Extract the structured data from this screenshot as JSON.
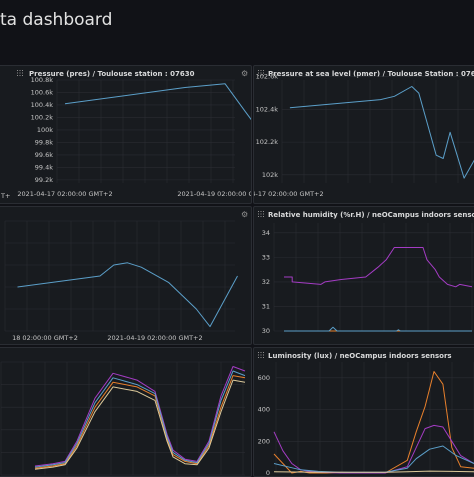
{
  "page": {
    "title": "ta dashboard"
  },
  "icons": {
    "panel_menu": "gear-icon",
    "panel_drag": "grip-icon"
  },
  "colors": {
    "background": "#111217",
    "panel": "#181b1f",
    "grid": "#2a2d33",
    "blue": "#5b9fc9",
    "purple": "#a43cc4",
    "orange": "#e8802c",
    "beige": "#dcc99a"
  },
  "panels": {
    "pres": {
      "title": "Pressure (pres) / Toulouse station : 07630",
      "partial_left_tick": "T+"
    },
    "pmer": {
      "title": "Pressure at sea level (pmer) / Toulouse Station : 07630"
    },
    "temp": {
      "title": ""
    },
    "hum": {
      "title": "Relative humidity (%r.H) / neOCampus indoors sensors"
    },
    "env": {
      "title": ""
    },
    "lum": {
      "title": "Luminosity (lux) / neOCampus indoors sensors"
    }
  },
  "chart_data": [
    {
      "panel": "pres",
      "type": "line",
      "title": "Pressure (pres) / Toulouse station : 07630",
      "yticks": [
        "100.8k",
        "100.6k",
        "100.4k",
        "100.2k",
        "100k",
        "99.8k",
        "99.6k",
        "99.4k",
        "99.2k"
      ],
      "ylim": [
        99150,
        100800
      ],
      "xticks": [
        "2021-04-17 02:00:00 GMT+2",
        "2021-04-19 02:00:00 GMT+2"
      ],
      "x_hours": [
        0,
        48
      ],
      "series": [
        {
          "color": "#5b9fc9",
          "x": [
            0,
            36,
            48,
            54,
            60,
            64,
            66,
            72,
            80
          ],
          "y": [
            100420,
            100680,
            100740,
            100300,
            99870,
            99850,
            99600,
            99550,
            99200
          ]
        }
      ]
    },
    {
      "panel": "pmer",
      "type": "line",
      "title": "Pressure at sea level (pmer) / Toulouse Station : 07630",
      "yticks": [
        "102.6k",
        "102.4k",
        "102.2k",
        "102k"
      ],
      "ylim": [
        101950,
        102580
      ],
      "xticks": [
        "2021-04-17 02:00:00 GMT+2"
      ],
      "x_hours": [
        0
      ],
      "series": [
        {
          "color": "#5b9fc9",
          "x": [
            4,
            30,
            34,
            39,
            41,
            46,
            48,
            50,
            52,
            54,
            58
          ],
          "y": [
            102410,
            102460,
            102480,
            102540,
            102500,
            102120,
            102100,
            102260,
            102120,
            101980,
            102130
          ]
        }
      ]
    },
    {
      "panel": "temp",
      "type": "line",
      "xticks": [
        "18 02:00:00 GMT+2",
        "2021-04-19 02:00:00 GMT+2"
      ],
      "x_hours": [
        0,
        24
      ],
      "ylim": [
        0,
        100
      ],
      "series": [
        {
          "color": "#5b9fc9",
          "x": [
            -6,
            12,
            15,
            18,
            21,
            27,
            33,
            36,
            42
          ],
          "y": [
            40,
            50,
            60,
            62,
            58,
            44,
            20,
            4,
            50
          ]
        }
      ]
    },
    {
      "panel": "hum",
      "type": "line",
      "title": "Relative humidity (%r.H) / neOCampus indoors sensors",
      "yticks": [
        "34",
        "33",
        "32",
        "31",
        "30"
      ],
      "ylim": [
        30,
        34.4
      ],
      "series": [
        {
          "color": "#a43cc4",
          "x": [
            0,
            4,
            4,
            18,
            20,
            28,
            40,
            46,
            50,
            54,
            68,
            70,
            74,
            76,
            80,
            84,
            86,
            92
          ],
          "y": [
            32.2,
            32.2,
            32.0,
            31.9,
            32.0,
            32.1,
            32.2,
            32.6,
            32.9,
            33.4,
            33.4,
            32.9,
            32.5,
            32.2,
            31.9,
            31.8,
            31.9,
            31.8
          ]
        },
        {
          "color": "#e8802c",
          "x": [
            0,
            92
          ],
          "y": [
            30.0,
            30.0
          ]
        },
        {
          "color": "#5b9fc9",
          "x": [
            0,
            22,
            24,
            26,
            55,
            56,
            57,
            58,
            92
          ],
          "y": [
            30.0,
            30.0,
            30.15,
            30.0,
            30.0,
            30.05,
            30.0,
            30.0,
            30.0
          ]
        }
      ]
    },
    {
      "panel": "env",
      "type": "line",
      "ylim": [
        0,
        100
      ],
      "series": [
        {
          "color": "#a43cc4",
          "x": [
            0,
            6,
            10,
            14,
            20,
            26,
            34,
            40,
            44,
            46,
            50,
            54,
            58,
            62,
            66,
            70
          ],
          "y": [
            8,
            10,
            12,
            30,
            68,
            90,
            84,
            74,
            36,
            22,
            14,
            12,
            30,
            70,
            96,
            92
          ]
        },
        {
          "color": "#e8802c",
          "x": [
            0,
            6,
            10,
            14,
            20,
            26,
            34,
            40,
            44,
            46,
            50,
            54,
            58,
            62,
            66,
            70
          ],
          "y": [
            6,
            8,
            10,
            26,
            60,
            82,
            78,
            70,
            32,
            18,
            12,
            10,
            26,
            60,
            88,
            86
          ]
        },
        {
          "color": "#5b9fc9",
          "x": [
            0,
            6,
            10,
            14,
            20,
            26,
            34,
            40,
            44,
            46,
            50,
            54,
            58,
            62,
            66,
            70
          ],
          "y": [
            7,
            9,
            11,
            28,
            64,
            86,
            80,
            72,
            34,
            20,
            13,
            11,
            28,
            66,
            92,
            88
          ]
        },
        {
          "color": "#dcc99a",
          "x": [
            0,
            6,
            10,
            14,
            20,
            26,
            34,
            40,
            44,
            46,
            50,
            54,
            58,
            62,
            66,
            70
          ],
          "y": [
            5,
            7,
            9,
            24,
            56,
            78,
            74,
            66,
            30,
            16,
            10,
            9,
            24,
            56,
            84,
            82
          ]
        }
      ]
    },
    {
      "panel": "lum",
      "type": "line",
      "title": "Luminosity (lux) / neOCampus indoors sensors",
      "yticks": [
        "600",
        "400",
        "200",
        "0"
      ],
      "ylim": [
        0,
        700
      ],
      "series": [
        {
          "color": "#e8802c",
          "x": [
            0,
            4,
            8,
            12,
            16,
            20,
            24,
            30,
            40,
            50,
            60,
            64,
            68,
            72,
            76,
            80,
            84,
            90
          ],
          "y": [
            120,
            60,
            0,
            10,
            0,
            0,
            0,
            5,
            0,
            0,
            80,
            260,
            420,
            640,
            560,
            160,
            40,
            30
          ]
        },
        {
          "color": "#a43cc4",
          "x": [
            0,
            4,
            8,
            12,
            16,
            20,
            30,
            40,
            50,
            60,
            64,
            68,
            72,
            76,
            80,
            84,
            90
          ],
          "y": [
            260,
            140,
            60,
            20,
            10,
            5,
            0,
            0,
            0,
            40,
            160,
            280,
            300,
            290,
            200,
            110,
            60
          ]
        },
        {
          "color": "#5b9fc9",
          "x": [
            0,
            6,
            12,
            20,
            30,
            40,
            50,
            60,
            64,
            70,
            76,
            82,
            90
          ],
          "y": [
            60,
            40,
            20,
            10,
            5,
            5,
            5,
            30,
            90,
            150,
            170,
            110,
            60
          ]
        },
        {
          "color": "#dcc99a",
          "x": [
            0,
            10,
            20,
            30,
            40,
            50,
            60,
            70,
            80,
            90
          ],
          "y": [
            8,
            6,
            5,
            5,
            5,
            5,
            8,
            12,
            10,
            8
          ]
        }
      ]
    }
  ]
}
